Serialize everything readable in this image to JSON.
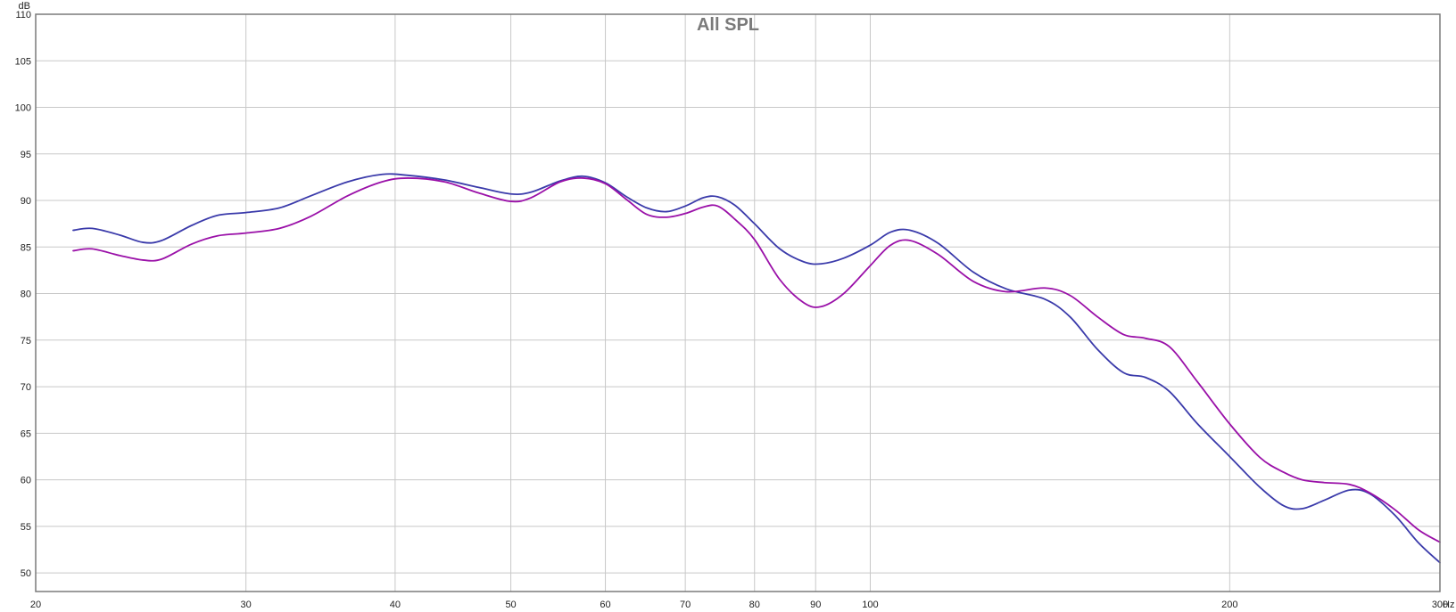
{
  "chart_data": {
    "type": "line",
    "title": "All SPL",
    "xlabel": "Hz",
    "ylabel": "dB",
    "xscale": "log",
    "xlim": [
      20,
      300
    ],
    "ylim": [
      48,
      110
    ],
    "x_ticks": [
      20,
      30,
      40,
      50,
      60,
      70,
      80,
      90,
      100,
      200,
      300
    ],
    "x_tick_labels": [
      "20",
      "30",
      "40",
      "50",
      "60",
      "70",
      "80",
      "90",
      "100",
      "200",
      "300"
    ],
    "y_ticks": [
      50,
      55,
      60,
      65,
      70,
      75,
      80,
      85,
      90,
      95,
      100,
      105,
      110
    ],
    "y_tick_labels": [
      "50",
      "55",
      "60",
      "65",
      "70",
      "75",
      "80",
      "85",
      "90",
      "95",
      "100",
      "105",
      "110"
    ],
    "grid": true,
    "legend": "none",
    "series": [
      {
        "color": "#3a3aaa",
        "points": [
          [
            21.5,
            86.8
          ],
          [
            22.3,
            87.0
          ],
          [
            23.5,
            86.3
          ],
          [
            24.6,
            85.5
          ],
          [
            25.5,
            85.7
          ],
          [
            27.0,
            87.3
          ],
          [
            28.4,
            88.4
          ],
          [
            30.0,
            88.7
          ],
          [
            32.0,
            89.2
          ],
          [
            34.0,
            90.5
          ],
          [
            36.5,
            92.0
          ],
          [
            39.0,
            92.8
          ],
          [
            41.0,
            92.7
          ],
          [
            44.0,
            92.2
          ],
          [
            47.0,
            91.4
          ],
          [
            50.0,
            90.7
          ],
          [
            52.0,
            90.9
          ],
          [
            55.0,
            92.1
          ],
          [
            57.5,
            92.6
          ],
          [
            60.0,
            91.9
          ],
          [
            62.5,
            90.4
          ],
          [
            65.0,
            89.2
          ],
          [
            67.5,
            88.8
          ],
          [
            70.0,
            89.4
          ],
          [
            72.5,
            90.3
          ],
          [
            74.5,
            90.4
          ],
          [
            77.0,
            89.5
          ],
          [
            80.0,
            87.5
          ],
          [
            84.0,
            84.8
          ],
          [
            88.0,
            83.4
          ],
          [
            91.0,
            83.2
          ],
          [
            95.0,
            83.8
          ],
          [
            100.0,
            85.2
          ],
          [
            104.0,
            86.6
          ],
          [
            108.0,
            86.8
          ],
          [
            114.0,
            85.4
          ],
          [
            122.0,
            82.3
          ],
          [
            130.0,
            80.5
          ],
          [
            140.0,
            79.4
          ],
          [
            147.0,
            77.5
          ],
          [
            155.0,
            74.0
          ],
          [
            163.0,
            71.5
          ],
          [
            170.0,
            71.0
          ],
          [
            178.0,
            69.5
          ],
          [
            188.0,
            66.0
          ],
          [
            200.0,
            62.5
          ],
          [
            212.0,
            59.2
          ],
          [
            222.0,
            57.2
          ],
          [
            230.0,
            56.9
          ],
          [
            240.0,
            57.8
          ],
          [
            252.0,
            58.9
          ],
          [
            262.0,
            58.5
          ],
          [
            275.0,
            56.2
          ],
          [
            288.0,
            53.2
          ],
          [
            300.0,
            51.1
          ]
        ]
      },
      {
        "color": "#9a10a8",
        "points": [
          [
            21.5,
            84.6
          ],
          [
            22.3,
            84.8
          ],
          [
            23.5,
            84.1
          ],
          [
            24.6,
            83.6
          ],
          [
            25.5,
            83.7
          ],
          [
            27.0,
            85.3
          ],
          [
            28.4,
            86.2
          ],
          [
            30.0,
            86.5
          ],
          [
            32.0,
            87.0
          ],
          [
            34.0,
            88.3
          ],
          [
            36.5,
            90.5
          ],
          [
            39.0,
            92.0
          ],
          [
            41.0,
            92.4
          ],
          [
            44.0,
            92.0
          ],
          [
            47.0,
            90.8
          ],
          [
            50.0,
            89.9
          ],
          [
            52.0,
            90.3
          ],
          [
            55.0,
            92.0
          ],
          [
            57.5,
            92.4
          ],
          [
            60.0,
            91.8
          ],
          [
            62.5,
            90.1
          ],
          [
            65.0,
            88.5
          ],
          [
            67.5,
            88.2
          ],
          [
            70.0,
            88.6
          ],
          [
            72.5,
            89.3
          ],
          [
            74.5,
            89.4
          ],
          [
            77.0,
            88.0
          ],
          [
            80.0,
            85.8
          ],
          [
            84.0,
            81.5
          ],
          [
            88.0,
            79.0
          ],
          [
            91.0,
            78.6
          ],
          [
            95.0,
            80.0
          ],
          [
            100.0,
            83.0
          ],
          [
            104.0,
            85.2
          ],
          [
            108.0,
            85.7
          ],
          [
            114.0,
            84.2
          ],
          [
            122.0,
            81.3
          ],
          [
            130.0,
            80.2
          ],
          [
            140.0,
            80.6
          ],
          [
            147.0,
            79.8
          ],
          [
            155.0,
            77.5
          ],
          [
            163.0,
            75.6
          ],
          [
            170.0,
            75.2
          ],
          [
            178.0,
            74.3
          ],
          [
            188.0,
            70.5
          ],
          [
            200.0,
            66.0
          ],
          [
            212.0,
            62.4
          ],
          [
            222.0,
            60.8
          ],
          [
            230.0,
            60.0
          ],
          [
            240.0,
            59.7
          ],
          [
            252.0,
            59.5
          ],
          [
            262.0,
            58.6
          ],
          [
            275.0,
            56.8
          ],
          [
            288.0,
            54.6
          ],
          [
            300.0,
            53.3
          ]
        ]
      }
    ]
  }
}
